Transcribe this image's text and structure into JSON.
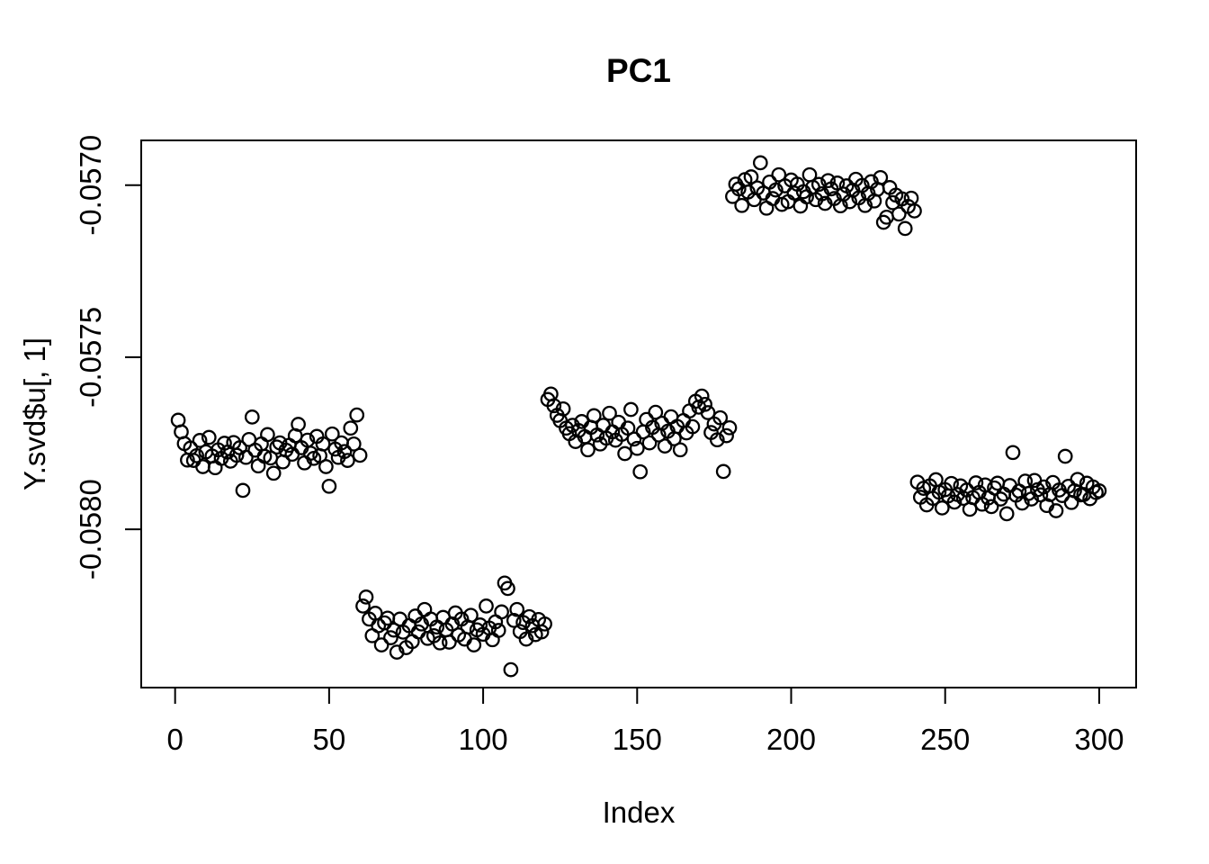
{
  "figure": {
    "title": "PC1",
    "xlabel": "Index",
    "ylabel": "Y.svd$u[, 1]"
  },
  "chart_data": {
    "type": "scatter",
    "title": "PC1",
    "xlabel": "Index",
    "ylabel": "Y.svd$u[, 1]",
    "grid": false,
    "legend": null,
    "marker": "open-circle",
    "point_color": "#000000",
    "background_color": "#ffffff",
    "x_ticks": [
      0,
      50,
      100,
      150,
      200,
      250,
      300
    ],
    "y_ticks": [
      -0.057,
      -0.0575,
      -0.058
    ],
    "y_tick_labels": [
      "-0.0570",
      "-0.0575",
      "-0.0580"
    ],
    "xlim": [
      -11,
      312
    ],
    "ylim": [
      -0.05846,
      -0.05687
    ],
    "n": 300,
    "x_start": 1,
    "x_step": 1,
    "cluster_means": [
      -0.05777,
      -0.05828,
      -0.05771,
      -0.05702,
      -0.05789
    ],
    "cluster_x_ranges": [
      [
        1,
        60
      ],
      [
        61,
        120
      ],
      [
        121,
        180
      ],
      [
        181,
        240
      ],
      [
        241,
        300
      ]
    ],
    "y": [
      -0.057683,
      -0.057717,
      -0.057751,
      -0.057799,
      -0.057764,
      -0.0578,
      -0.057786,
      -0.057742,
      -0.057818,
      -0.057775,
      -0.057733,
      -0.057787,
      -0.057821,
      -0.057769,
      -0.057794,
      -0.05775,
      -0.057776,
      -0.057802,
      -0.057748,
      -0.057785,
      -0.057763,
      -0.057887,
      -0.057791,
      -0.057739,
      -0.057674,
      -0.05777,
      -0.057816,
      -0.057752,
      -0.057788,
      -0.057725,
      -0.057793,
      -0.057837,
      -0.057761,
      -0.057749,
      -0.057804,
      -0.05777,
      -0.057756,
      -0.057782,
      -0.057728,
      -0.057695,
      -0.057763,
      -0.057807,
      -0.057741,
      -0.057779,
      -0.057794,
      -0.05773,
      -0.057786,
      -0.057752,
      -0.057818,
      -0.057875,
      -0.057723,
      -0.057767,
      -0.057791,
      -0.057749,
      -0.057774,
      -0.0578,
      -0.057706,
      -0.057752,
      -0.057668,
      -0.057785,
      -0.058223,
      -0.058197,
      -0.058261,
      -0.058309,
      -0.058244,
      -0.05828,
      -0.058336,
      -0.058272,
      -0.058258,
      -0.058315,
      -0.058293,
      -0.058357,
      -0.058261,
      -0.058299,
      -0.058344,
      -0.05828,
      -0.058326,
      -0.058252,
      -0.058298,
      -0.058275,
      -0.058233,
      -0.058317,
      -0.058261,
      -0.058309,
      -0.058284,
      -0.05833,
      -0.058256,
      -0.058292,
      -0.058328,
      -0.058275,
      -0.058243,
      -0.058307,
      -0.058261,
      -0.058319,
      -0.058284,
      -0.05825,
      -0.058336,
      -0.058292,
      -0.058278,
      -0.058305,
      -0.058223,
      -0.058287,
      -0.058321,
      -0.058269,
      -0.058294,
      -0.05824,
      -0.058156,
      -0.058172,
      -0.058408,
      -0.058265,
      -0.058233,
      -0.058297,
      -0.058271,
      -0.058319,
      -0.058254,
      -0.05828,
      -0.058306,
      -0.058262,
      -0.058298,
      -0.058275,
      -0.057623,
      -0.057607,
      -0.057641,
      -0.057669,
      -0.057684,
      -0.05765,
      -0.057706,
      -0.057722,
      -0.057698,
      -0.057745,
      -0.057713,
      -0.057687,
      -0.057731,
      -0.057769,
      -0.057704,
      -0.05767,
      -0.057726,
      -0.057752,
      -0.057698,
      -0.057735,
      -0.057663,
      -0.057717,
      -0.057741,
      -0.057689,
      -0.057724,
      -0.05778,
      -0.057706,
      -0.057652,
      -0.057738,
      -0.057765,
      -0.057833,
      -0.057717,
      -0.057681,
      -0.057749,
      -0.057704,
      -0.05766,
      -0.057726,
      -0.057692,
      -0.057758,
      -0.057715,
      -0.057673,
      -0.057737,
      -0.057701,
      -0.057769,
      -0.057684,
      -0.05772,
      -0.057656,
      -0.057702,
      -0.057628,
      -0.057645,
      -0.057613,
      -0.057637,
      -0.057661,
      -0.057719,
      -0.057694,
      -0.05774,
      -0.057676,
      -0.057832,
      -0.057728,
      -0.057705,
      -0.057033,
      -0.056997,
      -0.057011,
      -0.057059,
      -0.056984,
      -0.05702,
      -0.056976,
      -0.057042,
      -0.057008,
      -0.056935,
      -0.057023,
      -0.057067,
      -0.056991,
      -0.057039,
      -0.057014,
      -0.05697,
      -0.057056,
      -0.057002,
      -0.057048,
      -0.056985,
      -0.057023,
      -0.056997,
      -0.057061,
      -0.057019,
      -0.057034,
      -0.05697,
      -0.057006,
      -0.057042,
      -0.056998,
      -0.057025,
      -0.057053,
      -0.056987,
      -0.057011,
      -0.057039,
      -0.056994,
      -0.05706,
      -0.057026,
      -0.057002,
      -0.057048,
      -0.057015,
      -0.056983,
      -0.057037,
      -0.057001,
      -0.057059,
      -0.057024,
      -0.05699,
      -0.057046,
      -0.057012,
      -0.056978,
      -0.057108,
      -0.057093,
      -0.057007,
      -0.057051,
      -0.057029,
      -0.057084,
      -0.05704,
      -0.057126,
      -0.057062,
      -0.057038,
      -0.057075,
      -0.057863,
      -0.057907,
      -0.057881,
      -0.057929,
      -0.057874,
      -0.05791,
      -0.057856,
      -0.057892,
      -0.057938,
      -0.057885,
      -0.057903,
      -0.057867,
      -0.057921,
      -0.057899,
      -0.057874,
      -0.05791,
      -0.057886,
      -0.057942,
      -0.057908,
      -0.057865,
      -0.057893,
      -0.057927,
      -0.057871,
      -0.057909,
      -0.057934,
      -0.05788,
      -0.057866,
      -0.057912,
      -0.057898,
      -0.057955,
      -0.057873,
      -0.057777,
      -0.057901,
      -0.057889,
      -0.057924,
      -0.05786,
      -0.057896,
      -0.057912,
      -0.057858,
      -0.057885,
      -0.0579,
      -0.057877,
      -0.057931,
      -0.057899,
      -0.057864,
      -0.057946,
      -0.057886,
      -0.057902,
      -0.057788,
      -0.057875,
      -0.057922,
      -0.057888,
      -0.057855,
      -0.0579,
      -0.057899,
      -0.057866,
      -0.057911,
      -0.057877,
      -0.057893,
      -0.057888
    ]
  }
}
